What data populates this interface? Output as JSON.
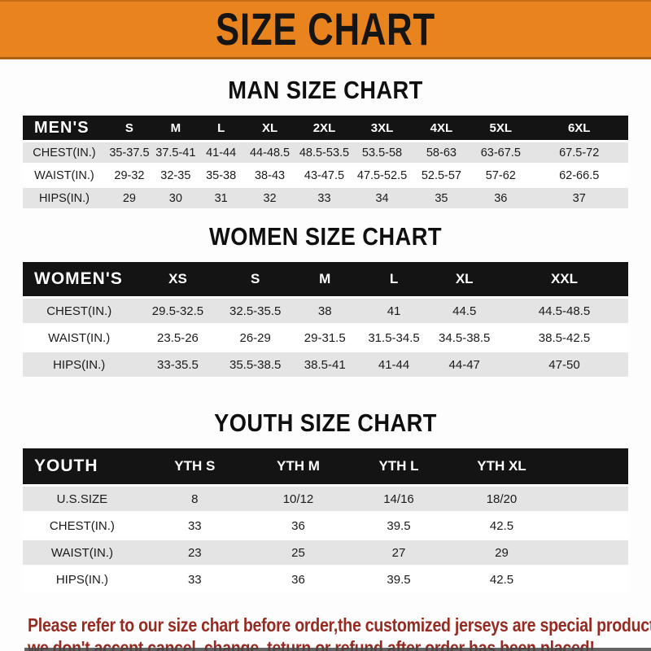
{
  "banner": {
    "title": "SIZE CHART"
  },
  "sections": [
    {
      "title": "MAN SIZE CHART",
      "header_label": "MEN'S",
      "columns": [
        "S",
        "M",
        "L",
        "XL",
        "2XL",
        "3XL",
        "4XL",
        "5XL",
        "6XL"
      ],
      "rows": [
        {
          "label": "CHEST(IN.)",
          "values": [
            "35-37.5",
            "37.5-41",
            "41-44",
            "44-48.5",
            "48.5-53.5",
            "53.5-58",
            "58-63",
            "63-67.5",
            "67.5-72"
          ]
        },
        {
          "label": "WAIST(IN.)",
          "values": [
            "29-32",
            "32-35",
            "35-38",
            "38-43",
            "43-47.5",
            "47.5-52.5",
            "52.5-57",
            "57-62",
            "62-66.5"
          ]
        },
        {
          "label": "HIPS(IN.)",
          "values": [
            "29",
            "30",
            "31",
            "32",
            "33",
            "34",
            "35",
            "36",
            "37"
          ]
        }
      ]
    },
    {
      "title": "WOMEN SIZE CHART",
      "header_label": "WOMEN'S",
      "columns": [
        "XS",
        "S",
        "M",
        "L",
        "XL",
        "XXL"
      ],
      "rows": [
        {
          "label": "CHEST(IN.)",
          "values": [
            "29.5-32.5",
            "32.5-35.5",
            "38",
            "41",
            "44.5",
            "44.5-48.5"
          ]
        },
        {
          "label": "WAIST(IN.)",
          "values": [
            "23.5-26",
            "26-29",
            "29-31.5",
            "31.5-34.5",
            "34.5-38.5",
            "38.5-42.5"
          ]
        },
        {
          "label": "HIPS(IN.)",
          "values": [
            "33-35.5",
            "35.5-38.5",
            "38.5-41",
            "41-44",
            "44-47",
            "47-50"
          ]
        }
      ]
    },
    {
      "title": "YOUTH SIZE CHART",
      "header_label": "YOUTH",
      "columns": [
        "YTH S",
        "YTH M",
        "YTH L",
        "YTH XL"
      ],
      "rows": [
        {
          "label": "U.S.SIZE",
          "values": [
            "8",
            "10/12",
            "14/16",
            "18/20"
          ]
        },
        {
          "label": "CHEST(IN.)",
          "values": [
            "33",
            "36",
            "39.5",
            "42.5"
          ]
        },
        {
          "label": "WAIST(IN.)",
          "values": [
            "23",
            "25",
            "27",
            "29"
          ]
        },
        {
          "label": "HIPS(IN.)",
          "values": [
            "33",
            "36",
            "39.5",
            "42.5"
          ]
        }
      ]
    }
  ],
  "footer": {
    "lines": [
      "Please refer to our size chart before order,the customized jerseys are special products,",
      "we don't accept cancel, change, teturn or refund after order has been placed!"
    ]
  },
  "colors": {
    "banner_bg": "#E8831E",
    "banner_text": "#151515",
    "table_header_bg": "#141414",
    "table_header_text": "#FFFFFF",
    "row_alt_bg": "#E4E4E4",
    "row_bg": "#FFFFFF",
    "notice_text": "#962B22"
  }
}
